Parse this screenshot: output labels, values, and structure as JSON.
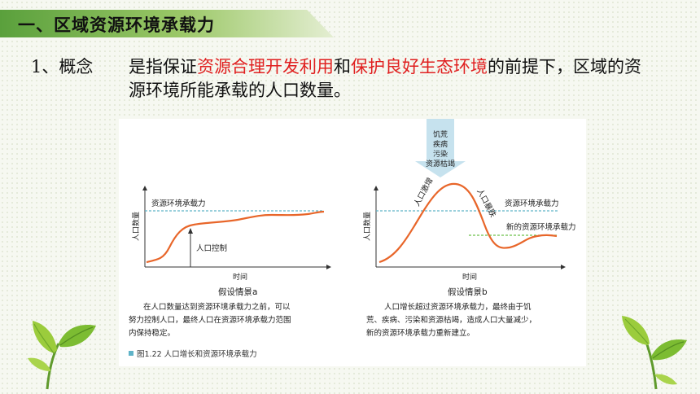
{
  "header": {
    "title": "一、区域资源环境承载力"
  },
  "concept": {
    "number": "1、概念",
    "text_parts": [
      "是指保证",
      "资源合理开发利用",
      "和",
      "保护良好生态环境",
      "的前提下，区域的资源环境所能承载的人口数量。"
    ]
  },
  "figure": {
    "chart_a": {
      "carrying_label": "资源环境承载力",
      "ylabel": "人口数量",
      "control_label": "人口控制",
      "xlabel": "时间",
      "scenario": "假设情景a",
      "caption_line1": "在人口数量达到资源环境承载力之前，可以",
      "caption_line2": "努力控制人口，最终人口在资源环境承载力范围",
      "caption_line3": "内保持稳定。"
    },
    "chart_b": {
      "factors": [
        "饥荒",
        "疾病",
        "污染",
        "资源枯竭"
      ],
      "surge_label": "人口激增",
      "crash_label": "人口暴跌",
      "carrying_label": "资源环境承载力",
      "new_carrying_label": "新的资源环境承载力",
      "ylabel": "人口数量",
      "xlabel": "时间",
      "scenario": "假设情景b",
      "caption_line1": "人口增长超过资源环境承载力，最终由于饥",
      "caption_line2": "荒、疾病、污染和资源枯竭，造成人口大量减少，",
      "caption_line3": "新的资源环境承载力重新建立。"
    },
    "caption": "图1.22   人口增长和资源环境承载力",
    "colors": {
      "curve": "#e8662a",
      "carrying_line": "#5fb3c8",
      "new_line": "#6cc04a",
      "arrow": "#c6e2ee"
    }
  }
}
